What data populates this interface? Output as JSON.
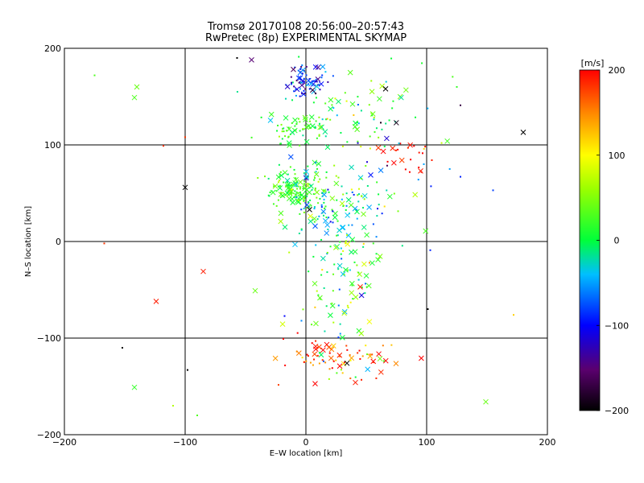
{
  "chart_data": {
    "type": "scatter",
    "title": "Tromsø 20170108 20:56:00–20:57:43",
    "subtitle": "RwPretec (8p) EXPERIMENTAL SKYMAP",
    "xlabel": "E–W location [km]",
    "ylabel": "N–S location [km]",
    "xlim": [
      -200,
      200
    ],
    "ylim": [
      -200,
      200
    ],
    "xticks": [
      "−200",
      "−100",
      "0",
      "100",
      "200"
    ],
    "yticks": [
      "−200",
      "−100",
      "0",
      "100",
      "200"
    ],
    "grid": true,
    "colorbar": {
      "unit": "[m/s]",
      "range": [
        -200,
        200
      ],
      "ticks": [
        "200",
        "100",
        "0",
        "−100",
        "−200"
      ]
    },
    "point_markers": [
      "dot",
      "cross"
    ],
    "clusters": [
      {
        "x": 0,
        "y": 165,
        "count": 70,
        "spread": [
          8,
          8
        ],
        "velocity": -90,
        "velocity_spread": 35
      },
      {
        "x": -5,
        "y": 115,
        "count": 60,
        "spread": [
          12,
          8
        ],
        "velocity": 20,
        "velocity_spread": 20
      },
      {
        "x": -10,
        "y": 55,
        "count": 130,
        "spread": [
          12,
          10
        ],
        "velocity": 25,
        "velocity_spread": 25
      },
      {
        "x": 25,
        "y": 35,
        "count": 110,
        "spread": [
          22,
          20
        ],
        "velocity": -10,
        "velocity_spread": 50
      },
      {
        "x": 30,
        "y": -40,
        "count": 120,
        "spread": [
          18,
          40
        ],
        "velocity": 20,
        "velocity_spread": 55
      },
      {
        "x": 25,
        "y": -120,
        "count": 70,
        "spread": [
          25,
          10
        ],
        "velocity": 170,
        "velocity_spread": 40
      },
      {
        "x": 30,
        "y": 140,
        "count": 60,
        "spread": [
          35,
          20
        ],
        "velocity": 10,
        "velocity_spread": 40
      },
      {
        "x": 80,
        "y": 90,
        "count": 20,
        "spread": [
          10,
          8
        ],
        "velocity": 195,
        "velocity_spread": 10
      },
      {
        "x": 60,
        "y": 80,
        "count": 40,
        "spread": [
          30,
          40
        ],
        "velocity": -20,
        "velocity_spread": 80
      }
    ],
    "points": [
      {
        "x": 180,
        "y": 113,
        "v": -200,
        "m": "cross"
      },
      {
        "x": -100,
        "y": 56,
        "v": -200,
        "m": "cross"
      },
      {
        "x": -142,
        "y": 149,
        "v": 30,
        "m": "cross"
      },
      {
        "x": -175,
        "y": 172,
        "v": 30,
        "m": "dot"
      },
      {
        "x": -140,
        "y": 160,
        "v": 40,
        "m": "cross"
      },
      {
        "x": -124,
        "y": -62,
        "v": 190,
        "m": "cross"
      },
      {
        "x": -167,
        "y": -2,
        "v": 180,
        "m": "dot"
      },
      {
        "x": -85,
        "y": -31,
        "v": 190,
        "m": "cross"
      },
      {
        "x": -142,
        "y": -151,
        "v": 20,
        "m": "cross"
      },
      {
        "x": -152,
        "y": -110,
        "v": -200,
        "m": "dot"
      },
      {
        "x": -98,
        "y": -133,
        "v": -200,
        "m": "dot"
      },
      {
        "x": -110,
        "y": -170,
        "v": 70,
        "m": "dot"
      },
      {
        "x": -90,
        "y": -180,
        "v": 30,
        "m": "dot"
      },
      {
        "x": 149,
        "y": -166,
        "v": 40,
        "m": "cross"
      },
      {
        "x": 101,
        "y": -70,
        "v": -200,
        "m": "dot"
      },
      {
        "x": 172,
        "y": -76,
        "v": 120,
        "m": "dot"
      },
      {
        "x": 103,
        "y": -9,
        "v": -90,
        "m": "dot"
      },
      {
        "x": 128,
        "y": 67,
        "v": -90,
        "m": "dot"
      },
      {
        "x": 155,
        "y": 53,
        "v": -80,
        "m": "dot"
      },
      {
        "x": 128,
        "y": 141,
        "v": -170,
        "m": "dot"
      },
      {
        "x": 125,
        "y": 160,
        "v": 20,
        "m": "dot"
      },
      {
        "x": -118,
        "y": 99,
        "v": 180,
        "m": "dot"
      },
      {
        "x": -100,
        "y": 108,
        "v": 180,
        "m": "dot"
      },
      {
        "x": -57,
        "y": 190,
        "v": -200,
        "m": "dot"
      },
      {
        "x": -45,
        "y": 188,
        "v": -150,
        "m": "cross"
      },
      {
        "x": -42,
        "y": -51,
        "v": 40,
        "m": "cross"
      },
      {
        "x": 45,
        "y": -47,
        "v": 190,
        "m": "cross"
      },
      {
        "x": 3,
        "y": 33,
        "v": -200,
        "m": "cross"
      },
      {
        "x": 66,
        "y": 158,
        "v": -200,
        "m": "cross"
      },
      {
        "x": 34,
        "y": -126,
        "v": -200,
        "m": "cross"
      },
      {
        "x": 41,
        "y": -146,
        "v": 190,
        "m": "cross"
      },
      {
        "x": 95,
        "y": 73,
        "v": 190,
        "m": "cross"
      },
      {
        "x": 60,
        "y": 97,
        "v": 180,
        "m": "cross"
      }
    ]
  }
}
